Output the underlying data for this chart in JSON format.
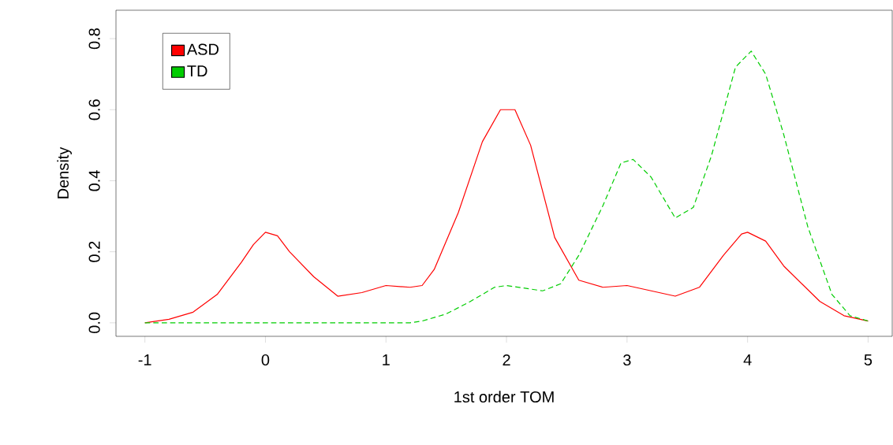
{
  "chart_data": {
    "type": "line",
    "xlabel": "1st order TOM",
    "ylabel": "Density",
    "xlim": [
      -1.24,
      5.2
    ],
    "ylim": [
      -0.038,
      0.88
    ],
    "xticks": [
      {
        "value": -1,
        "label": "-1"
      },
      0,
      1,
      2,
      3,
      4,
      5
    ],
    "yticks": [
      {
        "value": 0,
        "label": "0.0"
      },
      {
        "value": 0.2,
        "label": "0.2"
      },
      {
        "value": 0.4,
        "label": "0.4"
      },
      {
        "value": 0.6,
        "label": "0.6"
      },
      {
        "value": 0.8,
        "label": "0.8"
      }
    ],
    "grid": false,
    "legend": "top left",
    "series": [
      {
        "name": "ASD",
        "color": "#ff0000",
        "line_style": "solid",
        "x": [
          -1,
          -0.8,
          -0.6,
          -0.4,
          -0.2,
          -0.1,
          0,
          0.1,
          0.2,
          0.4,
          0.6,
          0.8,
          1.0,
          1.2,
          1.3,
          1.4,
          1.6,
          1.8,
          1.95,
          2.07,
          2.2,
          2.4,
          2.6,
          2.8,
          3,
          3.2,
          3.4,
          3.6,
          3.8,
          3.95,
          4,
          4.15,
          4.3,
          4.6,
          4.8,
          5
        ],
        "values": [
          0.0,
          0.01,
          0.03,
          0.08,
          0.17,
          0.22,
          0.255,
          0.245,
          0.2,
          0.13,
          0.075,
          0.085,
          0.105,
          0.1,
          0.105,
          0.15,
          0.31,
          0.51,
          0.6,
          0.6,
          0.5,
          0.24,
          0.12,
          0.1,
          0.105,
          0.09,
          0.075,
          0.1,
          0.19,
          0.25,
          0.255,
          0.23,
          0.16,
          0.06,
          0.02,
          0.005
        ]
      },
      {
        "name": "TD",
        "color": "#00cd00",
        "line_style": "dashed",
        "x": [
          -1,
          1.2,
          1.3,
          1.5,
          1.7,
          1.9,
          2.0,
          2.2,
          2.3,
          2.45,
          2.6,
          2.8,
          2.95,
          3.05,
          3.2,
          3.4,
          3.55,
          3.7,
          3.9,
          4.03,
          4.15,
          4.3,
          4.5,
          4.7,
          4.85,
          5
        ],
        "values": [
          0.0,
          0.0,
          0.005,
          0.025,
          0.06,
          0.1,
          0.105,
          0.095,
          0.09,
          0.11,
          0.19,
          0.33,
          0.45,
          0.46,
          0.41,
          0.295,
          0.325,
          0.47,
          0.72,
          0.765,
          0.7,
          0.53,
          0.27,
          0.08,
          0.02,
          0.005
        ]
      }
    ]
  }
}
